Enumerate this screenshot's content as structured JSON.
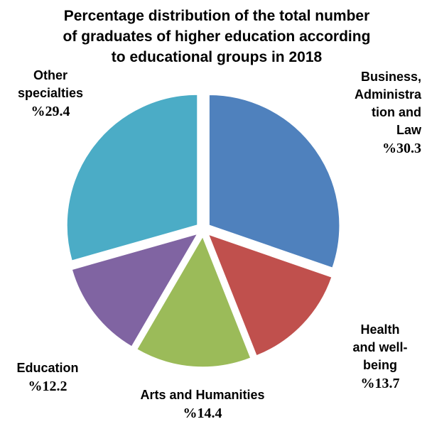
{
  "chart_data": {
    "type": "pie",
    "title_lines": [
      "Percentage distribution of the total number",
      "of graduates of higher education according",
      "to educational groups in 2018"
    ],
    "slices": [
      {
        "label_lines": [
          "Business,",
          "Administra",
          "tion and",
          "Law"
        ],
        "percent_text": "%30.3",
        "value": 30.3,
        "color": "#4F81BD"
      },
      {
        "label_lines": [
          "Health",
          "and well-",
          "being"
        ],
        "percent_text": "%13.7",
        "value": 13.7,
        "color": "#C0504D"
      },
      {
        "label_lines": [
          "Arts and Humanities"
        ],
        "percent_text": "%14.4",
        "value": 14.4,
        "color": "#9BBB59"
      },
      {
        "label_lines": [
          "Education"
        ],
        "percent_text": "%12.2",
        "value": 12.2,
        "color": "#8064A2"
      },
      {
        "label_lines": [
          "Other",
          "specialties"
        ],
        "percent_text": "%29.4",
        "value": 29.4,
        "color": "#4BACC6"
      }
    ]
  }
}
